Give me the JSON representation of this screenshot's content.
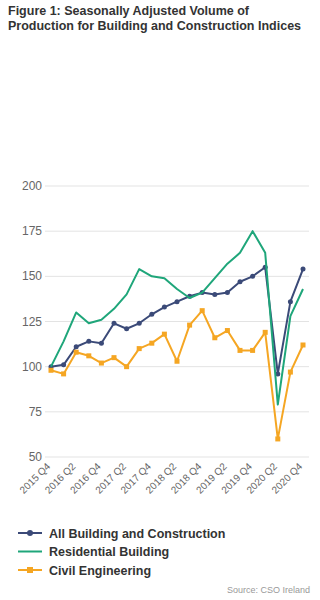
{
  "chart_data": {
    "type": "line",
    "title": "Figure 1: Seasonally Adjusted Volume of Production for Building and Construction Indices",
    "categories": [
      "2015 Q4",
      null,
      "2016 Q2",
      null,
      "2016 Q4",
      null,
      "2017 Q2",
      null,
      "2017 Q4",
      null,
      "2018 Q2",
      null,
      "2018 Q4",
      null,
      "2019 Q2",
      null,
      "2019 Q4",
      null,
      "2020 Q2",
      null,
      "2020 Q4"
    ],
    "series": [
      {
        "name": "All Building and Construction",
        "color": "#3b4a78",
        "marker": "circle",
        "values": [
          100,
          101,
          111,
          114,
          113,
          124,
          121,
          124,
          129,
          133,
          136,
          139,
          141,
          140,
          141,
          147,
          150,
          155,
          96,
          136,
          154
        ]
      },
      {
        "name": "Residential Building",
        "color": "#1fa67a",
        "marker": "none",
        "values": [
          100,
          114,
          130,
          124,
          126,
          132,
          140,
          154,
          150,
          149,
          143,
          138,
          141,
          149,
          157,
          163,
          175,
          163,
          79,
          128,
          143
        ]
      },
      {
        "name": "Civil Engineering",
        "color": "#f5a623",
        "marker": "square",
        "values": [
          98,
          96,
          108,
          106,
          102,
          105,
          100,
          110,
          113,
          118,
          103,
          123,
          131,
          116,
          120,
          109,
          109,
          119,
          60,
          97,
          112
        ]
      }
    ],
    "ylim": [
      50,
      200
    ],
    "yticks": [
      50,
      75,
      100,
      125,
      150,
      175,
      200
    ],
    "grid": true,
    "legend": "bottom",
    "source": "Source: CSO Ireland"
  }
}
